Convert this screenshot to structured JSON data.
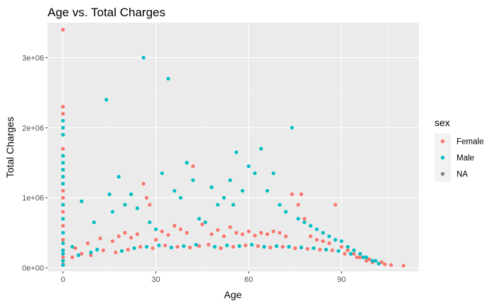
{
  "chart_data": {
    "type": "scatter",
    "title": "Age vs. Total Charges",
    "xlabel": "Age",
    "ylabel": "Total Charges",
    "xlim": [
      -5,
      115
    ],
    "ylim": [
      -50000,
      3500000
    ],
    "x_ticks": [
      0,
      30,
      60,
      90
    ],
    "x_tick_labels": [
      "0",
      "30",
      "60",
      "90"
    ],
    "y_ticks": [
      0,
      1000000,
      2000000,
      3000000
    ],
    "y_tick_labels": [
      "0e+00",
      "1e+06",
      "2e+06",
      "3e+06"
    ],
    "grid": true,
    "panel_background": "#ebebeb",
    "legend": {
      "title": "sex",
      "position": "right",
      "entries": [
        {
          "label": "Female",
          "color": "#F8766D"
        },
        {
          "label": "Male",
          "color": "#00BFC4"
        },
        {
          "label": "NA",
          "color": "#7F7F7F"
        }
      ]
    },
    "series": [
      {
        "name": "Female",
        "color": "#F8766D",
        "x": [
          0,
          0,
          0,
          0,
          0,
          0,
          0,
          0,
          0,
          0,
          0,
          0,
          0,
          0,
          0,
          0,
          0,
          0,
          4,
          8,
          12,
          16,
          18,
          20,
          22,
          24,
          26,
          27,
          28,
          30,
          32,
          34,
          36,
          38,
          40,
          42,
          45,
          48,
          50,
          52,
          54,
          56,
          58,
          60,
          62,
          64,
          66,
          68,
          70,
          72,
          74,
          76,
          77,
          78,
          80,
          82,
          84,
          86,
          88,
          90,
          92,
          94,
          96,
          98,
          100,
          102,
          104,
          106,
          110,
          3,
          6,
          9,
          13,
          17,
          21,
          25,
          29,
          33,
          37,
          41,
          44,
          47,
          51,
          55,
          59,
          63,
          67,
          71,
          75,
          79,
          83,
          87,
          91,
          95,
          99,
          103
        ],
        "y": [
          3400000,
          2300000,
          2200000,
          2000000,
          1900000,
          1700000,
          1400000,
          1300000,
          1200000,
          1100000,
          1000000,
          900000,
          800000,
          600000,
          400000,
          250000,
          150000,
          50000,
          280000,
          350000,
          420000,
          380000,
          450000,
          500000,
          430000,
          480000,
          1200000,
          1000000,
          900000,
          400000,
          520000,
          470000,
          600000,
          550000,
          500000,
          1450000,
          620000,
          480000,
          540000,
          450000,
          580000,
          500000,
          480000,
          520000,
          460000,
          500000,
          480000,
          520000,
          500000,
          450000,
          1050000,
          900000,
          1050000,
          700000,
          450000,
          400000,
          380000,
          350000,
          900000,
          300000,
          250000,
          200000,
          150000,
          100000,
          80000,
          60000,
          50000,
          40000,
          30000,
          150000,
          200000,
          180000,
          250000,
          220000,
          260000,
          300000,
          280000,
          320000,
          300000,
          290000,
          310000,
          330000,
          280000,
          300000,
          320000,
          310000,
          290000,
          300000,
          280000,
          270000,
          260000,
          250000,
          200000,
          150000,
          120000,
          80000
        ]
      },
      {
        "name": "Male",
        "color": "#00BFC4",
        "x": [
          0,
          0,
          0,
          0,
          0,
          0,
          0,
          0,
          0,
          0,
          0,
          0,
          0,
          0,
          0,
          0,
          3,
          6,
          10,
          14,
          15,
          16,
          18,
          20,
          22,
          24,
          26,
          28,
          30,
          32,
          34,
          36,
          38,
          40,
          42,
          44,
          46,
          48,
          50,
          52,
          54,
          55,
          56,
          58,
          60,
          62,
          64,
          66,
          68,
          70,
          72,
          74,
          76,
          78,
          80,
          82,
          84,
          86,
          88,
          90,
          92,
          94,
          96,
          98,
          100,
          102,
          5,
          9,
          11,
          19,
          23,
          27,
          31,
          35,
          39,
          43,
          49,
          53,
          57,
          61,
          65,
          69,
          73,
          77,
          81,
          85,
          89,
          93,
          97,
          101
        ],
        "y": [
          2100000,
          2000000,
          1900000,
          1600000,
          1500000,
          1400000,
          1300000,
          1200000,
          900000,
          700000,
          500000,
          350000,
          250000,
          200000,
          100000,
          40000,
          300000,
          950000,
          650000,
          2400000,
          1050000,
          800000,
          1300000,
          900000,
          1050000,
          850000,
          3000000,
          650000,
          550000,
          1350000,
          2700000,
          1100000,
          1000000,
          1500000,
          1250000,
          700000,
          650000,
          1150000,
          900000,
          1000000,
          1250000,
          900000,
          1650000,
          1100000,
          1450000,
          1350000,
          1700000,
          1100000,
          1350000,
          900000,
          800000,
          2000000,
          700000,
          650000,
          600000,
          550000,
          500000,
          450000,
          400000,
          380000,
          300000,
          250000,
          200000,
          150000,
          100000,
          60000,
          180000,
          220000,
          260000,
          240000,
          280000,
          300000,
          320000,
          290000,
          310000,
          330000,
          300000,
          320000,
          310000,
          330000,
          300000,
          310000,
          300000,
          290000,
          280000,
          260000,
          240000,
          200000,
          150000,
          100000
        ]
      }
    ]
  }
}
